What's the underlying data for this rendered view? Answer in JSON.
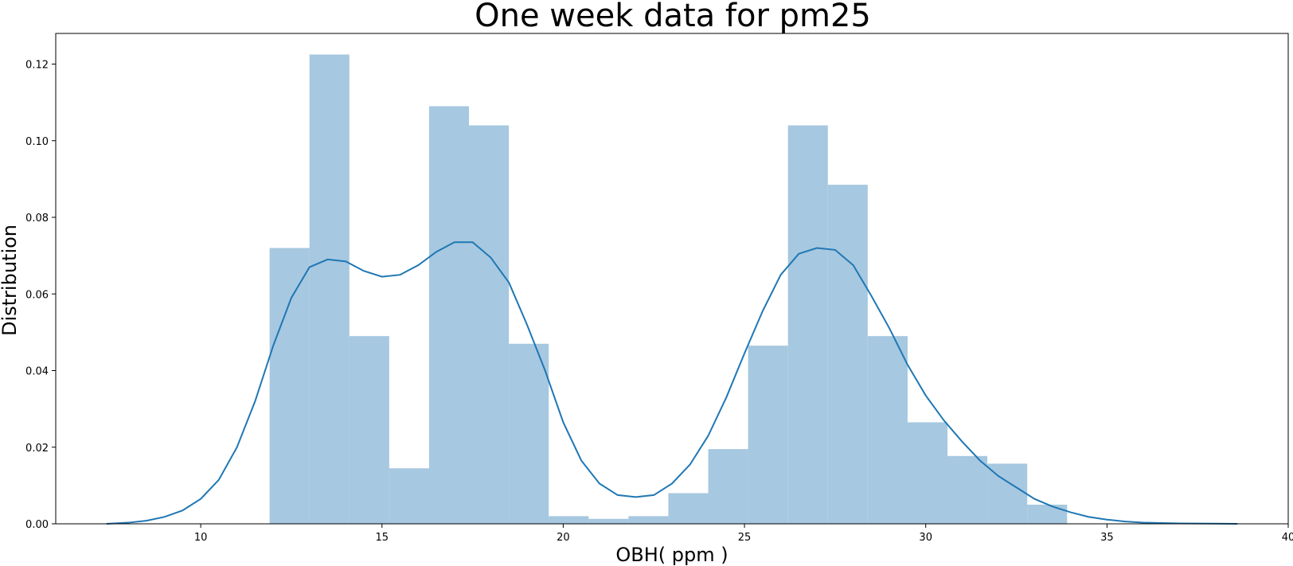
{
  "chart_data": {
    "type": "bar",
    "title": "One week data for pm25",
    "xlabel": "OBH( ppm )",
    "ylabel": "Distribution",
    "xlim": [
      6.0,
      40.0
    ],
    "ylim": [
      0.0,
      0.128
    ],
    "x_ticks": [
      10,
      15,
      20,
      25,
      30,
      35,
      40
    ],
    "y_ticks": [
      0.0,
      0.02,
      0.04,
      0.06,
      0.08,
      0.1,
      0.12
    ],
    "x_tick_labels": [
      "10",
      "15",
      "20",
      "25",
      "30",
      "35",
      "40"
    ],
    "y_tick_labels": [
      "0.00",
      "0.02",
      "0.04",
      "0.06",
      "0.08",
      "0.10",
      "0.12"
    ],
    "grid": false,
    "legend": "none",
    "histogram": {
      "name": "",
      "color": "#a6c8e0",
      "bin_edges": [
        11.9,
        13.0,
        14.1,
        15.2,
        16.3,
        17.4,
        18.5,
        19.6,
        20.7,
        21.8,
        22.9,
        24.0,
        25.1,
        26.2,
        27.3,
        28.4,
        29.5,
        30.6,
        31.7,
        32.8,
        33.9
      ],
      "densities": [
        0.072,
        0.1225,
        0.049,
        0.0145,
        0.109,
        0.104,
        0.047,
        0.002,
        0.0013,
        0.002,
        0.008,
        0.0195,
        0.0465,
        0.104,
        0.0885,
        0.049,
        0.0265,
        0.0177,
        0.0157,
        0.005
      ]
    },
    "kde": {
      "name": "",
      "color": "#1f77b4",
      "x": [
        7.4,
        8.0,
        8.5,
        9.0,
        9.5,
        10.0,
        10.5,
        11.0,
        11.5,
        12.0,
        12.5,
        13.0,
        13.5,
        14.0,
        14.5,
        15.0,
        15.5,
        16.0,
        16.5,
        17.0,
        17.5,
        18.0,
        18.5,
        19.0,
        19.5,
        20.0,
        20.5,
        21.0,
        21.5,
        22.0,
        22.5,
        23.0,
        23.5,
        24.0,
        24.5,
        25.0,
        25.5,
        26.0,
        26.5,
        27.0,
        27.5,
        28.0,
        28.5,
        29.0,
        29.5,
        30.0,
        30.5,
        31.0,
        31.5,
        32.0,
        32.5,
        33.0,
        33.5,
        34.0,
        34.5,
        35.0,
        35.5,
        36.0,
        37.0,
        38.6
      ],
      "y": [
        0.0,
        0.0003,
        0.0008,
        0.0018,
        0.0035,
        0.0065,
        0.0115,
        0.02,
        0.032,
        0.0465,
        0.059,
        0.067,
        0.069,
        0.0685,
        0.066,
        0.0645,
        0.065,
        0.0675,
        0.071,
        0.0735,
        0.0735,
        0.0695,
        0.063,
        0.052,
        0.04,
        0.0265,
        0.0165,
        0.0105,
        0.0075,
        0.007,
        0.0075,
        0.0105,
        0.0155,
        0.023,
        0.033,
        0.0445,
        0.0555,
        0.065,
        0.0705,
        0.072,
        0.0715,
        0.0675,
        0.0595,
        0.051,
        0.0415,
        0.0335,
        0.027,
        0.0215,
        0.0165,
        0.0125,
        0.0095,
        0.0065,
        0.0045,
        0.003,
        0.0018,
        0.0011,
        0.0006,
        0.0003,
        0.0001,
        0.0
      ]
    }
  }
}
